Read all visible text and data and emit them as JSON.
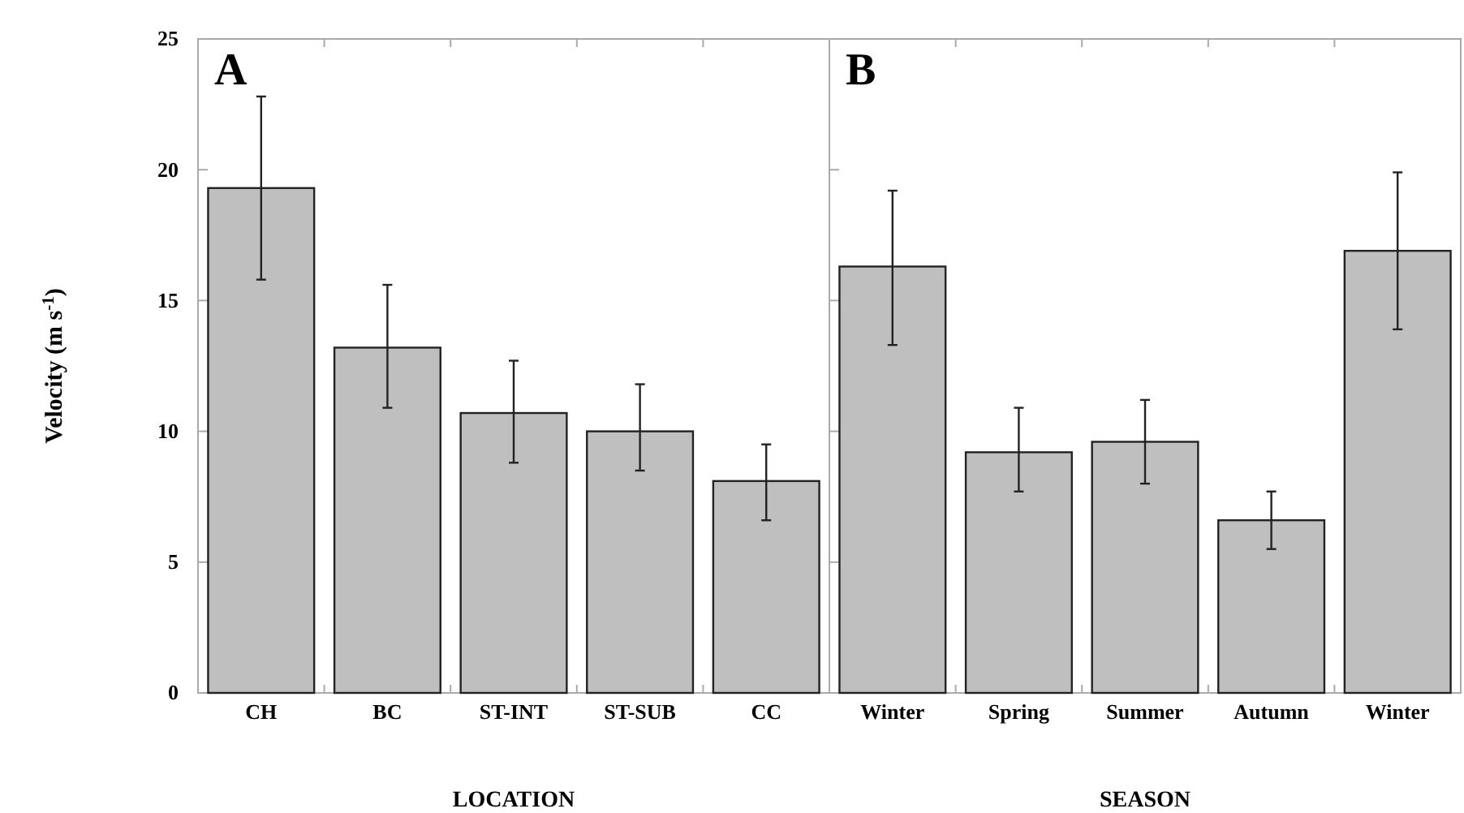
{
  "chart_data": [
    {
      "type": "bar",
      "title": "A",
      "xlabel": "LOCATION",
      "ylabel": "Velocity (m s$^{-1}$)",
      "categories": [
        "CH",
        "BC",
        "ST-INT",
        "ST-SUB",
        "CC"
      ],
      "series": [
        {
          "color": "#bfbfbf",
          "values": [
            19.3,
            13.2,
            10.7,
            10.0,
            8.1
          ],
          "errors": [
            [
              15.8,
              22.8
            ],
            [
              10.9,
              15.6
            ],
            [
              8.8,
              12.7
            ],
            [
              8.5,
              11.8
            ],
            [
              6.6,
              9.5
            ]
          ]
        }
      ],
      "ylim": [
        0,
        25
      ],
      "yticks": [
        0,
        5,
        10,
        15,
        20,
        25
      ]
    },
    {
      "type": "bar",
      "title": "B",
      "xlabel": "SEASON",
      "categories": [
        "Winter",
        "Spring",
        "Summer",
        "Autumn",
        "Winter"
      ],
      "series": [
        {
          "color": "#bfbfbf",
          "values": [
            16.3,
            9.2,
            9.6,
            6.6,
            16.9
          ],
          "errors": [
            [
              13.3,
              19.2
            ],
            [
              7.7,
              10.9
            ],
            [
              8.0,
              11.2
            ],
            [
              5.5,
              7.7
            ],
            [
              13.9,
              19.9
            ]
          ]
        }
      ],
      "ylim": [
        0,
        25
      ],
      "yticks": [
        0,
        5,
        10,
        15,
        20,
        25
      ],
      "tick_labels": "x"
    }
  ]
}
